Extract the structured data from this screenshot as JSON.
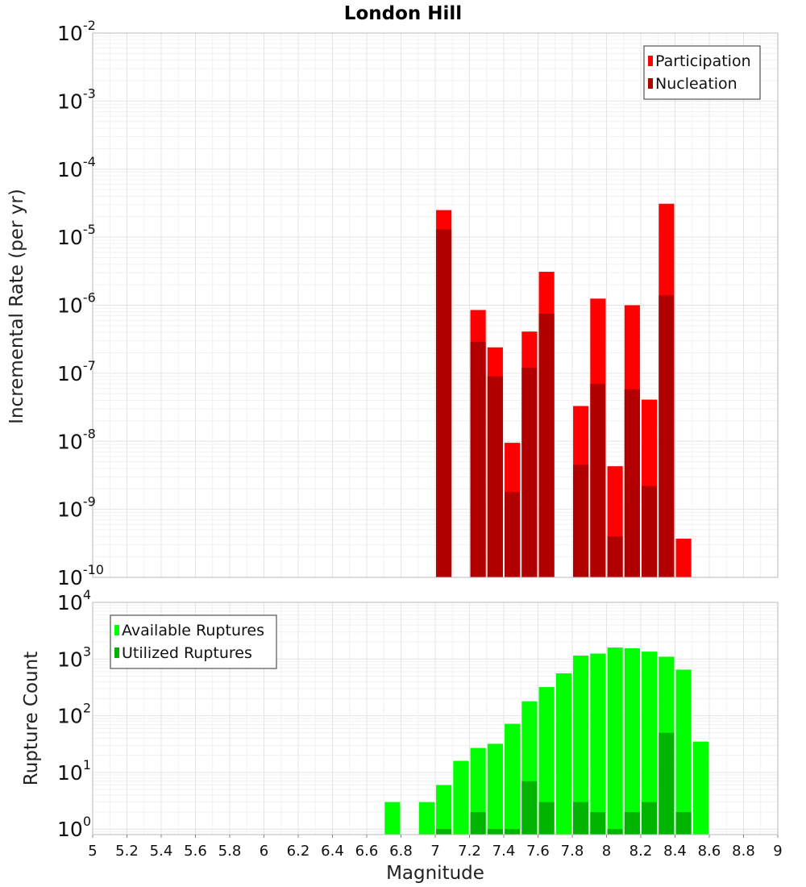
{
  "chart_data": [
    {
      "type": "bar",
      "title": "London Hill",
      "xlabel": "",
      "ylabel": "Incremental Rate (per yr)",
      "yscale": "log",
      "ylim": [
        1e-10,
        0.01
      ],
      "xlim": [
        5,
        9
      ],
      "ytick_exponents": [
        "-10",
        "-9",
        "-8",
        "-7",
        "-6",
        "-5",
        "-4",
        "-3",
        "-2"
      ],
      "legend": {
        "placement": "top-right",
        "entries": [
          "Participation",
          "Nucleation"
        ]
      },
      "grid": true,
      "bar_width": 0.09,
      "series": [
        {
          "name": "Participation",
          "color": "#ff0000",
          "x": [
            7.05,
            7.25,
            7.35,
            7.45,
            7.55,
            7.65,
            7.85,
            7.95,
            8.05,
            8.15,
            8.25,
            8.35,
            8.45
          ],
          "values": [
            2.5e-05,
            8.5e-07,
            2.4e-07,
            9.5e-09,
            4.1e-07,
            3.1e-06,
            3.3e-08,
            1.25e-06,
            4.3e-09,
            1e-06,
            4.1e-08,
            3.1e-05,
            3.7e-10
          ]
        },
        {
          "name": "Nucleation",
          "color": "#b20000",
          "x": [
            7.05,
            7.25,
            7.35,
            7.45,
            7.55,
            7.65,
            7.85,
            7.95,
            8.05,
            8.15,
            8.25,
            8.35
          ],
          "values": [
            1.3e-05,
            2.9e-07,
            9e-08,
            1.8e-09,
            1.2e-07,
            7.5e-07,
            4.5e-09,
            7e-08,
            4e-10,
            5.8e-08,
            2.2e-09,
            1.4e-06
          ]
        }
      ]
    },
    {
      "type": "bar",
      "title": "",
      "xlabel": "Magnitude",
      "ylabel": "Rupture Count",
      "yscale": "log",
      "ylim": [
        0.8,
        10000
      ],
      "xlim": [
        5,
        9
      ],
      "ytick_exponents": [
        "0",
        "1",
        "2",
        "3",
        "4"
      ],
      "xticks": [
        "5",
        "5.2",
        "5.4",
        "5.6",
        "5.8",
        "6",
        "6.2",
        "6.4",
        "6.6",
        "6.8",
        "7",
        "7.2",
        "7.4",
        "7.6",
        "7.8",
        "8",
        "8.2",
        "8.4",
        "8.6",
        "8.8",
        "9"
      ],
      "legend": {
        "placement": "top-left",
        "entries": [
          "Available Ruptures",
          "Utilized Ruptures"
        ]
      },
      "grid": true,
      "bar_width": 0.09,
      "series": [
        {
          "name": "Available Ruptures",
          "color": "#00ff00",
          "x": [
            6.75,
            6.95,
            7.05,
            7.15,
            7.25,
            7.35,
            7.45,
            7.55,
            7.65,
            7.75,
            7.85,
            7.95,
            8.05,
            8.15,
            8.25,
            8.35,
            8.45,
            8.55
          ],
          "values": [
            3,
            3,
            6,
            16,
            27,
            32,
            72,
            180,
            320,
            560,
            1150,
            1250,
            1600,
            1550,
            1350,
            1100,
            650,
            35
          ]
        },
        {
          "name": "Utilized Ruptures",
          "color": "#00b400",
          "x": [
            7.05,
            7.25,
            7.35,
            7.45,
            7.55,
            7.65,
            7.85,
            7.95,
            8.05,
            8.15,
            8.25,
            8.35,
            8.45
          ],
          "values": [
            1,
            2,
            1,
            1,
            7,
            3,
            3,
            2,
            1,
            2,
            3,
            50,
            2
          ]
        }
      ]
    }
  ]
}
